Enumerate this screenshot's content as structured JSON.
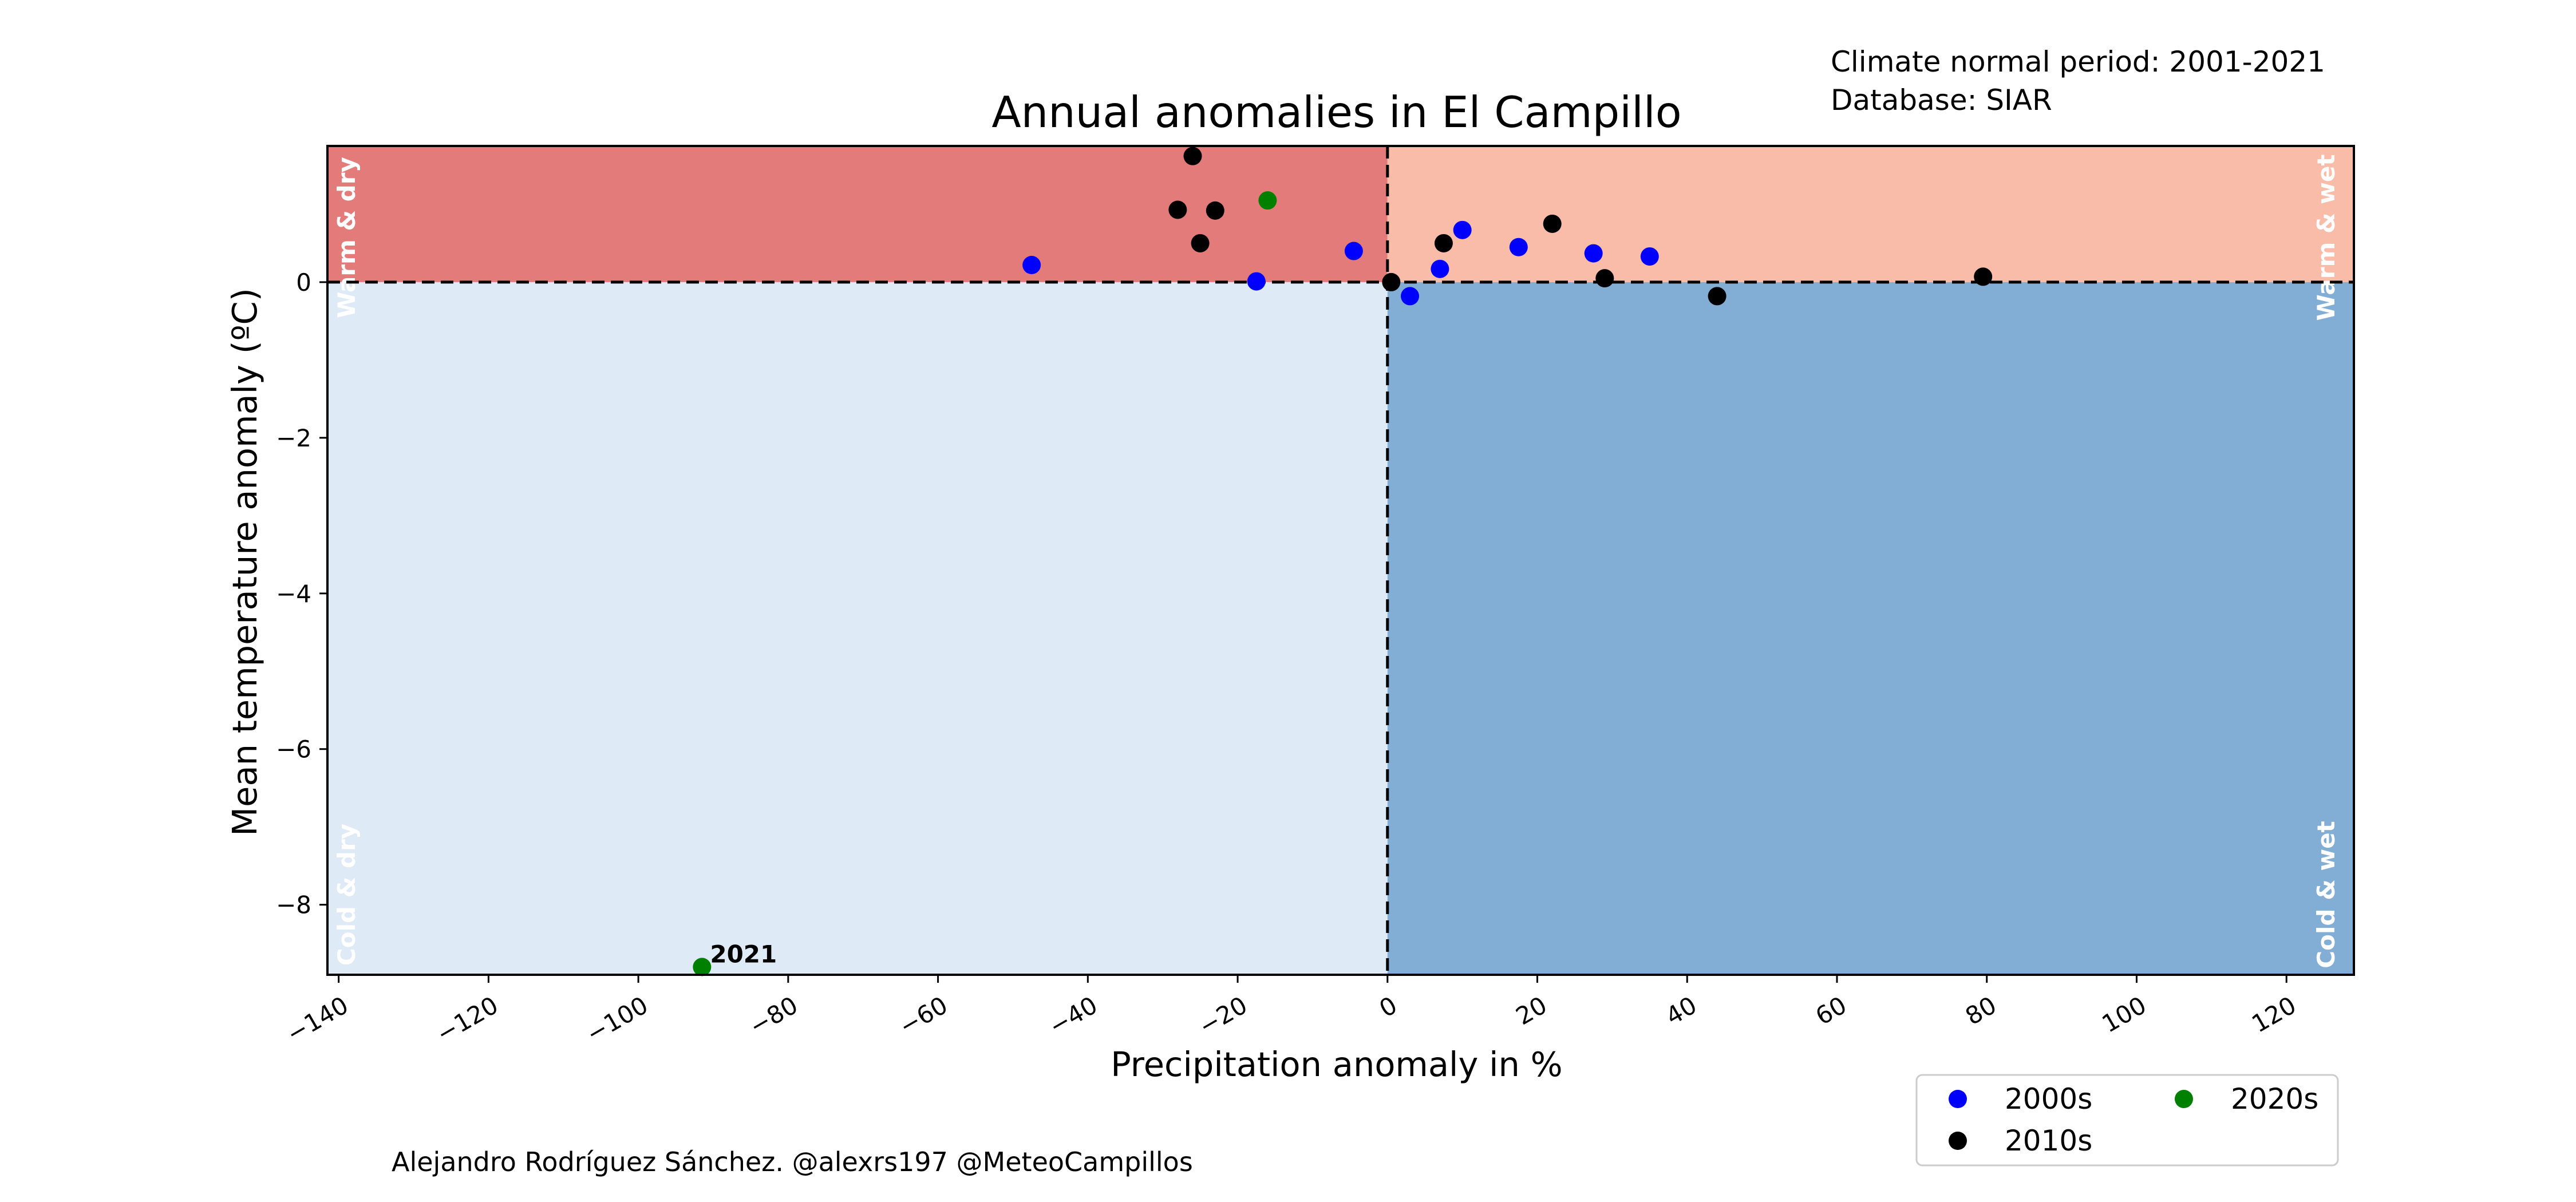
{
  "header": {
    "period": "Climate normal period: 2001-2021",
    "database": "Database: SIAR"
  },
  "credit": "Alejandro Rodríguez Sánchez. @alexrs197 @MeteoCampillos",
  "chart_data": {
    "type": "scatter",
    "title": "Annual anomalies in El Campillo",
    "xlabel": "Precipitation anomaly in %",
    "ylabel": "Mean temperature anomaly (ºC)",
    "xlim": [
      -141.5,
      129
    ],
    "ylim": [
      -8.9,
      1.75
    ],
    "x_ticks": [
      -140,
      -120,
      -100,
      -80,
      -60,
      -40,
      -20,
      0,
      20,
      40,
      60,
      80,
      100,
      120
    ],
    "x_tick_labels": [
      "−140",
      "−120",
      "−100",
      "−80",
      "−60",
      "−40",
      "−20",
      "0",
      "20",
      "40",
      "60",
      "80",
      "100",
      "120"
    ],
    "y_ticks": [
      0,
      -2,
      -4,
      -6,
      -8
    ],
    "y_tick_labels": [
      "0",
      "−2",
      "−4",
      "−6",
      "−8"
    ],
    "grid": false,
    "reference_lines": {
      "x": 0,
      "y": 0,
      "style": "dashed"
    },
    "quadrants": [
      {
        "label": "Warm & dry",
        "x_range": "negative",
        "y_range": "positive",
        "color": "#e37b7b"
      },
      {
        "label": "Warm & wet",
        "x_range": "positive",
        "y_range": "positive",
        "color": "#f8bca8"
      },
      {
        "label": "Cold & dry",
        "x_range": "negative",
        "y_range": "negative",
        "color": "#deeaf6"
      },
      {
        "label": "Cold & wet",
        "x_range": "positive",
        "y_range": "negative",
        "color": "#82aed5"
      }
    ],
    "series": [
      {
        "name": "2000s",
        "color": "#0000ff",
        "points": [
          {
            "x": -47.5,
            "y": 0.22
          },
          {
            "x": -17.5,
            "y": 0.01
          },
          {
            "x": -4.5,
            "y": 0.4
          },
          {
            "x": 3.0,
            "y": -0.18
          },
          {
            "x": 7.0,
            "y": 0.17
          },
          {
            "x": 10.0,
            "y": 0.67
          },
          {
            "x": 17.5,
            "y": 0.45
          },
          {
            "x": 27.5,
            "y": 0.37
          },
          {
            "x": 35.0,
            "y": 0.33
          }
        ]
      },
      {
        "name": "2010s",
        "color": "#000000",
        "points": [
          {
            "x": -28.0,
            "y": 0.93
          },
          {
            "x": -26.0,
            "y": 1.62
          },
          {
            "x": -25.0,
            "y": 0.5
          },
          {
            "x": -23.0,
            "y": 0.92
          },
          {
            "x": 0.5,
            "y": 0.0
          },
          {
            "x": 7.5,
            "y": 0.5
          },
          {
            "x": 22.0,
            "y": 0.75
          },
          {
            "x": 29.0,
            "y": 0.05
          },
          {
            "x": 44.0,
            "y": -0.18
          },
          {
            "x": 79.5,
            "y": 0.07
          }
        ]
      },
      {
        "name": "2020s",
        "color": "#008000",
        "points": [
          {
            "x": -16.0,
            "y": 1.05
          },
          {
            "x": -91.5,
            "y": -8.8,
            "label": "2021"
          }
        ]
      }
    ],
    "legend": {
      "placement": "lower-right",
      "columns": 2
    }
  }
}
